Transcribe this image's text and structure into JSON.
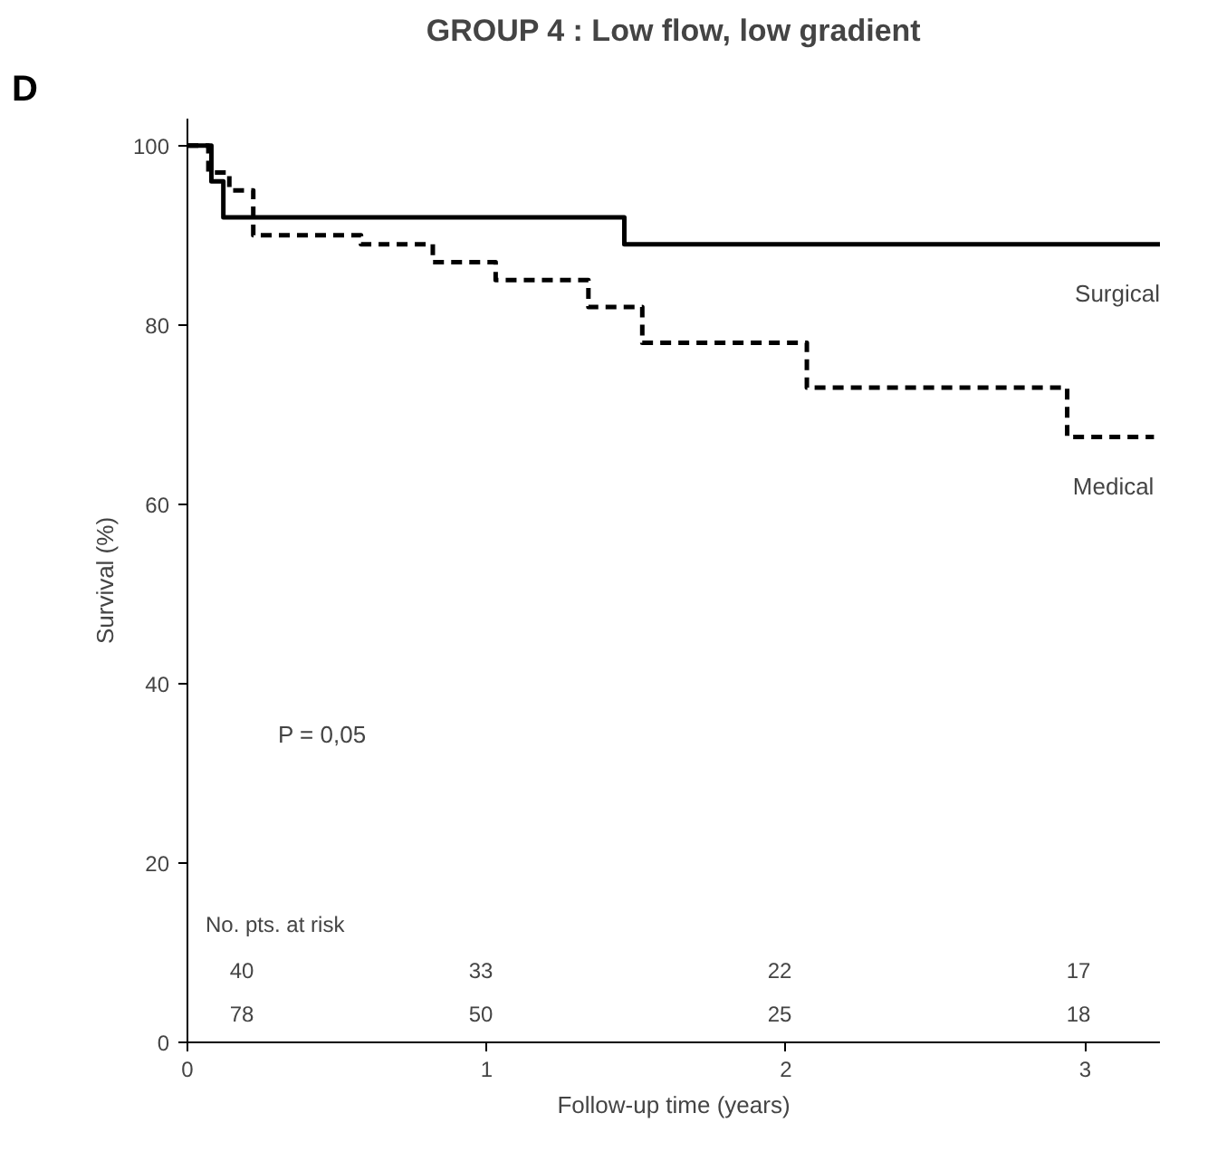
{
  "chart_data": {
    "type": "step",
    "title": "GROUP 4 : Low flow, low gradient",
    "xlabel": "Follow-up time (years)",
    "ylabel": "Survival (%)",
    "xlim": [
      0,
      3.25
    ],
    "ylim": [
      0,
      103
    ],
    "xticks": [
      0,
      1,
      2,
      3
    ],
    "yticks": [
      0,
      20,
      40,
      60,
      80,
      100
    ],
    "grid": false,
    "legend": false,
    "marker": "none",
    "series": [
      {
        "name": "Surgical",
        "color": "#000000",
        "line_style": "solid",
        "x": [
          0,
          0.08,
          0.12,
          1.46,
          3.25
        ],
        "values": [
          100,
          96,
          92,
          89,
          89
        ]
      },
      {
        "name": "Medical",
        "color": "#000000",
        "line_style": "dashed",
        "x": [
          0,
          0.07,
          0.14,
          0.22,
          0.58,
          0.82,
          1.03,
          1.34,
          1.52,
          2.07,
          2.94,
          3.23
        ],
        "values": [
          100,
          97,
          95,
          90,
          89,
          87,
          85,
          82,
          78,
          73,
          67.5,
          67.5
        ]
      }
    ],
    "annotations": [
      "D",
      "P = 0,05",
      "No. pts. at risk",
      "40",
      "33",
      "22",
      "17",
      "78",
      "50",
      "25",
      "18"
    ]
  }
}
